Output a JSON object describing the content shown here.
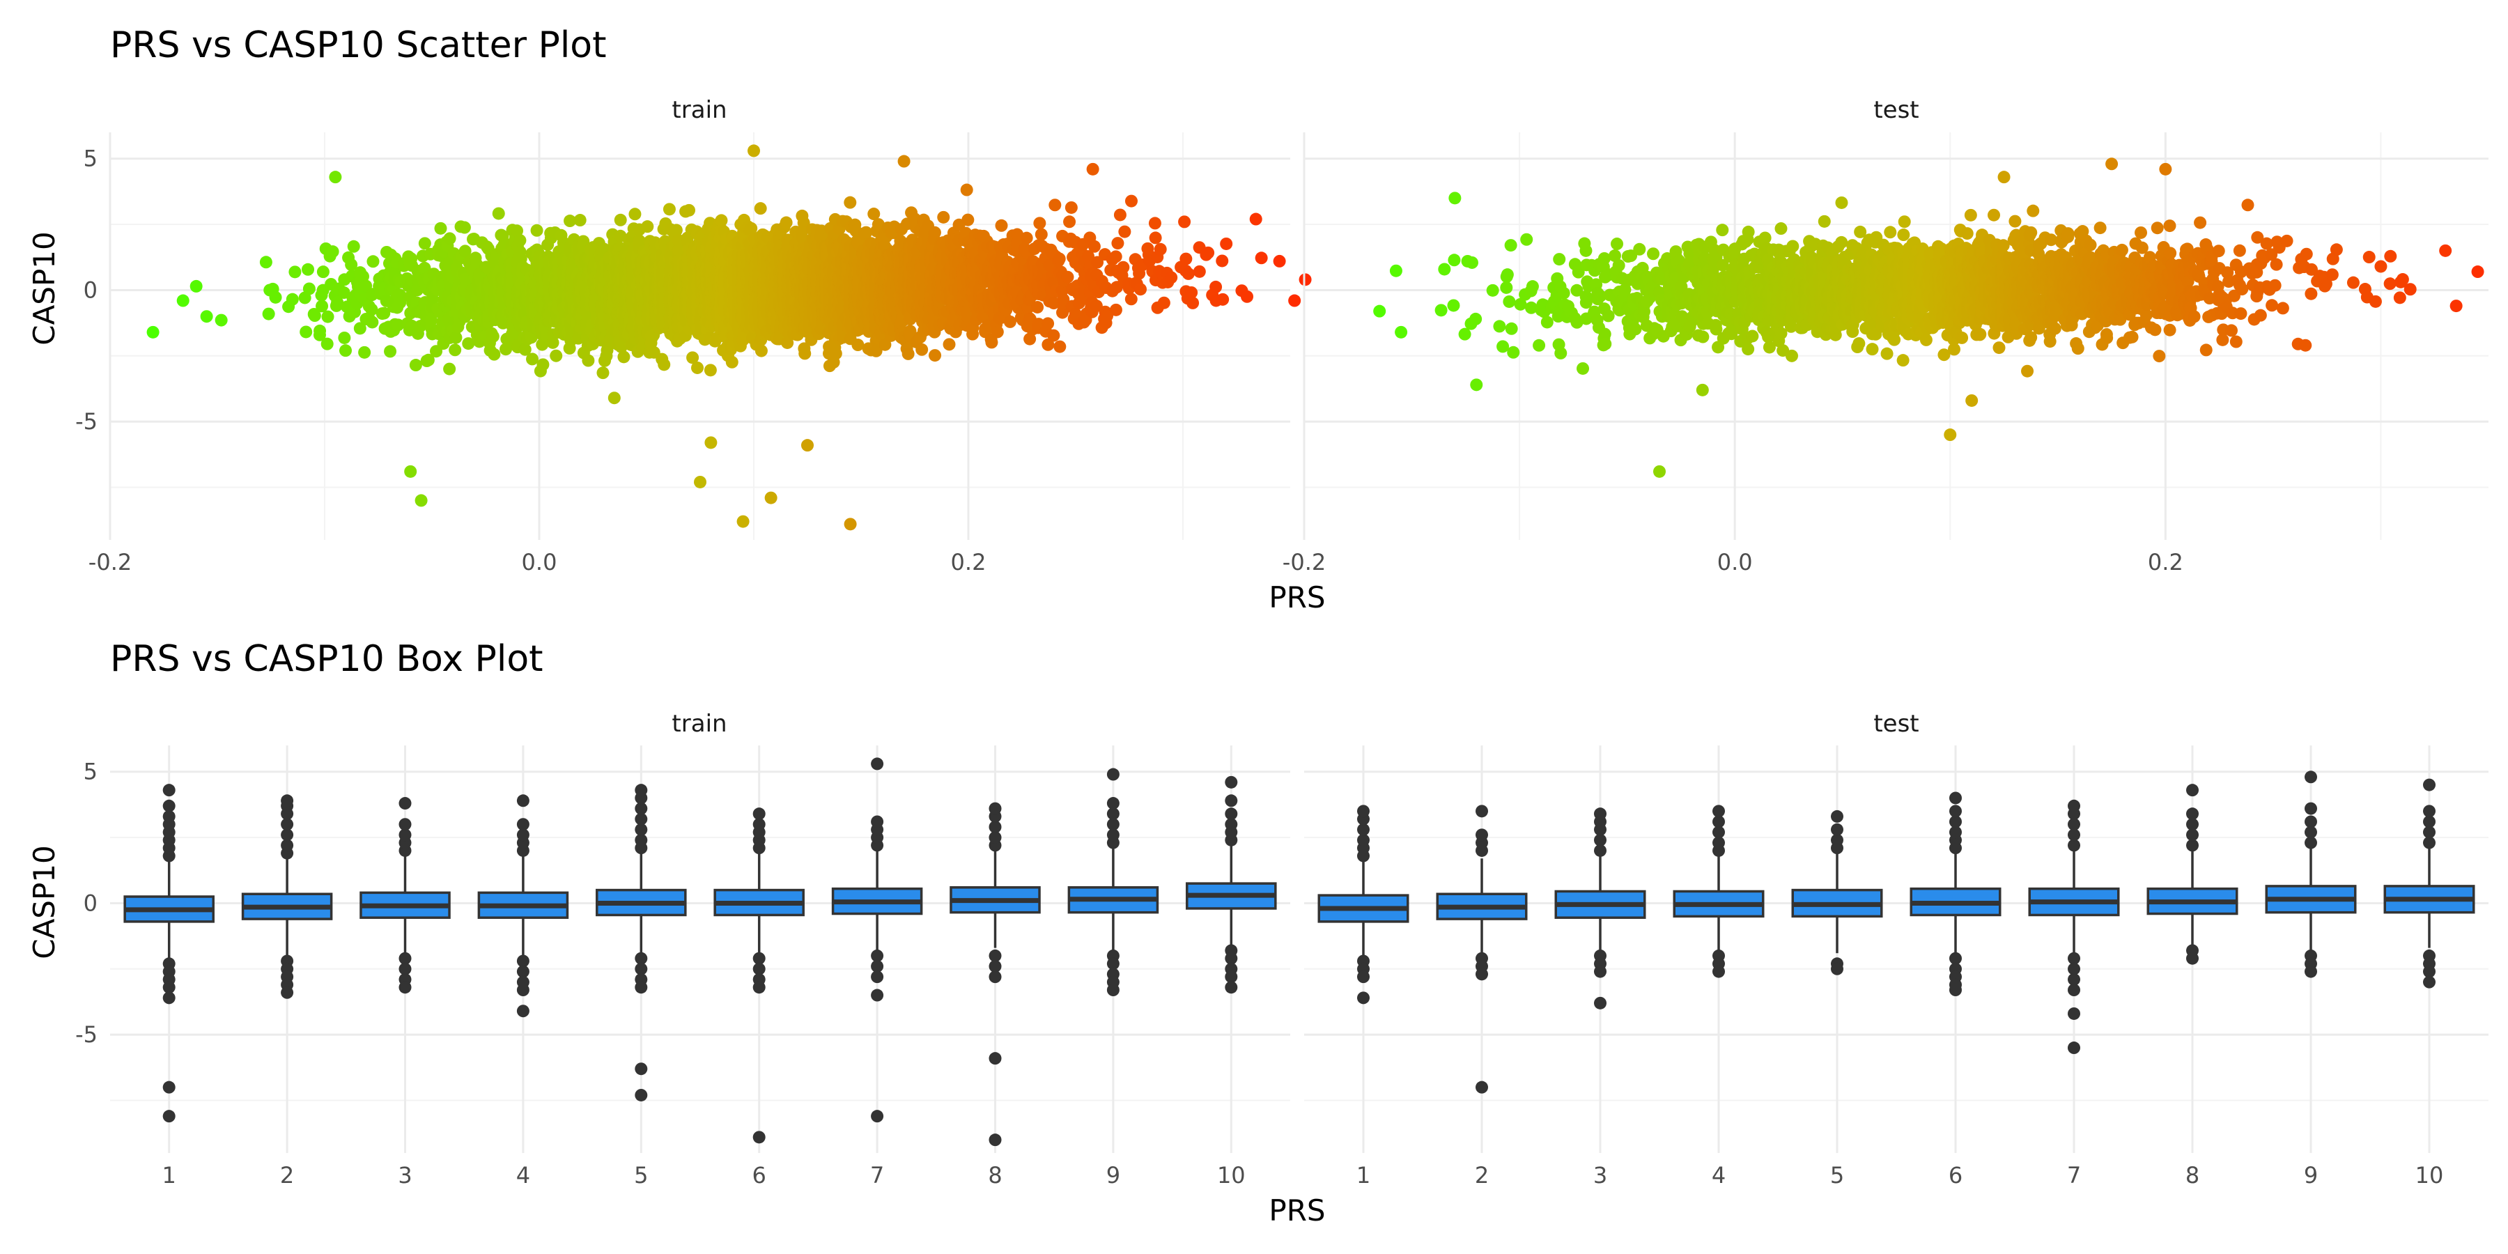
{
  "chart_data": [
    {
      "type": "scatter",
      "title": "PRS vs CASP10 Scatter Plot",
      "xlabel": "PRS",
      "ylabel": "CASP10",
      "facets": [
        "train",
        "test"
      ],
      "xlim": [
        -0.2,
        0.35
      ],
      "ylim": [
        -9.5,
        6
      ],
      "x_ticks": [
        -0.2,
        0.0,
        0.2
      ],
      "x_tick_labels": [
        "-0.2",
        "0.0",
        "0.2"
      ],
      "y_ticks": [
        -5,
        0,
        5
      ],
      "y_tick_labels": [
        "-5",
        "0",
        "5"
      ],
      "grid": true,
      "color_scale": {
        "low": "#4cff00",
        "mid": "#c8b400",
        "high": "#ff2a00",
        "mapped_to": "PRS"
      },
      "point_clouds": [
        {
          "facet": "train",
          "n_points": 6000,
          "x_center": 0.095,
          "x_sd": 0.075,
          "x_range": [
            -0.18,
            0.357
          ],
          "y_center": 0.1,
          "y_sd": 0.95,
          "y_slope": 1.6
        },
        {
          "facet": "test",
          "n_points": 2600,
          "x_center": 0.085,
          "x_sd": 0.075,
          "x_range": [
            -0.16,
            0.345
          ],
          "y_center": 0.0,
          "y_sd": 0.9,
          "y_slope": 1.6
        }
      ],
      "outliers": [
        {
          "facet": "train",
          "points": [
            [
              -0.18,
              -1.6
            ],
            [
              -0.166,
              -0.4
            ],
            [
              -0.155,
              -1.0
            ],
            [
              -0.095,
              4.3
            ],
            [
              -0.06,
              -6.9
            ],
            [
              -0.055,
              -8.0
            ],
            [
              0.035,
              -4.1
            ],
            [
              0.08,
              -5.8
            ],
            [
              0.075,
              -7.3
            ],
            [
              0.1,
              5.3
            ],
            [
              0.095,
              -8.8
            ],
            [
              0.108,
              -7.9
            ],
            [
              0.125,
              -5.9
            ],
            [
              0.145,
              -8.9
            ],
            [
              0.17,
              4.9
            ],
            [
              0.258,
              4.6
            ],
            [
              0.334,
              2.7
            ],
            [
              0.352,
              -0.4
            ],
            [
              0.357,
              0.4
            ],
            [
              0.345,
              1.1
            ]
          ]
        },
        {
          "facet": "test",
          "points": [
            [
              -0.155,
              -1.6
            ],
            [
              -0.165,
              -0.8
            ],
            [
              -0.13,
              3.5
            ],
            [
              -0.12,
              -3.6
            ],
            [
              -0.035,
              -6.9
            ],
            [
              -0.015,
              -3.8
            ],
            [
              0.1,
              -5.5
            ],
            [
              0.11,
              -4.2
            ],
            [
              0.125,
              4.3
            ],
            [
              0.175,
              4.8
            ],
            [
              0.2,
              4.6
            ],
            [
              0.265,
              -2.1
            ],
            [
              0.3,
              0.9
            ],
            [
              0.33,
              1.5
            ],
            [
              0.335,
              -0.6
            ],
            [
              0.345,
              0.7
            ]
          ]
        }
      ]
    },
    {
      "type": "box",
      "title": "PRS vs CASP10 Box Plot",
      "xlabel": "PRS",
      "ylabel": "CASP10",
      "facets": [
        "train",
        "test"
      ],
      "categories": [
        "1",
        "2",
        "3",
        "4",
        "5",
        "6",
        "7",
        "8",
        "9",
        "10"
      ],
      "ylim": [
        -9.5,
        6
      ],
      "y_ticks": [
        -5,
        0,
        5
      ],
      "y_tick_labels": [
        "-5",
        "0",
        "5"
      ],
      "grid": true,
      "fill_color": "#2a8ceb",
      "series": [
        {
          "name": "train",
          "boxes": [
            {
              "q1": -0.7,
              "median": -0.25,
              "q3": 0.25,
              "whisker_low": -2.1,
              "whisker_high": 1.6,
              "outliers": [
                1.8,
                2.1,
                2.4,
                2.7,
                3.0,
                3.3,
                3.7,
                4.3,
                -2.3,
                -2.6,
                -2.9,
                -3.2,
                -3.6,
                -7.0,
                -8.1
              ]
            },
            {
              "q1": -0.6,
              "median": -0.15,
              "q3": 0.35,
              "whisker_low": -2.0,
              "whisker_high": 1.7,
              "outliers": [
                1.9,
                2.2,
                2.6,
                3.0,
                3.4,
                3.7,
                3.9,
                -2.2,
                -2.5,
                -2.8,
                -3.1,
                -3.4
              ]
            },
            {
              "q1": -0.55,
              "median": -0.1,
              "q3": 0.4,
              "whisker_low": -1.9,
              "whisker_high": 1.8,
              "outliers": [
                2.0,
                2.3,
                2.6,
                3.0,
                3.8,
                -2.1,
                -2.5,
                -2.9,
                -3.2
              ]
            },
            {
              "q1": -0.55,
              "median": -0.1,
              "q3": 0.4,
              "whisker_low": -2.0,
              "whisker_high": 1.8,
              "outliers": [
                2.0,
                2.3,
                2.6,
                3.0,
                3.9,
                -2.2,
                -2.6,
                -3.0,
                -3.3,
                -4.1
              ]
            },
            {
              "q1": -0.45,
              "median": 0.0,
              "q3": 0.5,
              "whisker_low": -1.9,
              "whisker_high": 1.9,
              "outliers": [
                2.1,
                2.4,
                2.8,
                3.2,
                3.6,
                4.0,
                4.3,
                -2.1,
                -2.5,
                -2.9,
                -3.2,
                -6.3,
                -7.3
              ]
            },
            {
              "q1": -0.45,
              "median": 0.0,
              "q3": 0.5,
              "whisker_low": -1.9,
              "whisker_high": 1.9,
              "outliers": [
                2.1,
                2.4,
                2.7,
                3.0,
                3.4,
                -2.1,
                -2.5,
                -2.9,
                -3.2,
                -8.9
              ]
            },
            {
              "q1": -0.4,
              "median": 0.05,
              "q3": 0.55,
              "whisker_low": -1.8,
              "whisker_high": 2.0,
              "outliers": [
                2.2,
                2.5,
                2.8,
                3.1,
                5.3,
                -2.0,
                -2.4,
                -2.8,
                -3.5,
                -8.1
              ]
            },
            {
              "q1": -0.35,
              "median": 0.1,
              "q3": 0.6,
              "whisker_low": -1.7,
              "whisker_high": 2.0,
              "outliers": [
                2.2,
                2.5,
                2.9,
                3.3,
                3.6,
                -2.0,
                -2.4,
                -2.8,
                -5.9,
                -9.0
              ]
            },
            {
              "q1": -0.35,
              "median": 0.15,
              "q3": 0.6,
              "whisker_low": -1.8,
              "whisker_high": 2.1,
              "outliers": [
                2.3,
                2.6,
                3.0,
                3.4,
                3.8,
                4.9,
                -2.0,
                -2.3,
                -2.7,
                -3.0,
                -3.3
              ]
            },
            {
              "q1": -0.2,
              "median": 0.3,
              "q3": 0.75,
              "whisker_low": -1.6,
              "whisker_high": 2.2,
              "outliers": [
                2.4,
                2.7,
                3.0,
                3.4,
                3.9,
                4.6,
                -1.8,
                -2.1,
                -2.5,
                -2.8,
                -3.2
              ]
            }
          ]
        },
        {
          "name": "test",
          "boxes": [
            {
              "q1": -0.7,
              "median": -0.2,
              "q3": 0.3,
              "whisker_low": -2.0,
              "whisker_high": 1.6,
              "outliers": [
                1.8,
                2.1,
                2.4,
                2.8,
                3.2,
                3.5,
                -2.2,
                -2.5,
                -2.8,
                -3.6
              ]
            },
            {
              "q1": -0.6,
              "median": -0.15,
              "q3": 0.35,
              "whisker_low": -1.9,
              "whisker_high": 1.7,
              "outliers": [
                2.0,
                2.3,
                2.6,
                3.5,
                -2.1,
                -2.4,
                -2.7,
                -7.0
              ]
            },
            {
              "q1": -0.55,
              "median": -0.05,
              "q3": 0.45,
              "whisker_low": -1.8,
              "whisker_high": 1.8,
              "outliers": [
                2.0,
                2.4,
                2.8,
                3.1,
                3.4,
                -2.0,
                -2.3,
                -2.6,
                -3.8
              ]
            },
            {
              "q1": -0.5,
              "median": -0.05,
              "q3": 0.45,
              "whisker_low": -1.8,
              "whisker_high": 1.8,
              "outliers": [
                2.0,
                2.3,
                2.7,
                3.1,
                3.5,
                -2.0,
                -2.3,
                -2.6
              ]
            },
            {
              "q1": -0.5,
              "median": -0.05,
              "q3": 0.5,
              "whisker_low": -1.9,
              "whisker_high": 1.9,
              "outliers": [
                2.1,
                2.4,
                2.8,
                3.3,
                -2.3,
                -2.5
              ]
            },
            {
              "q1": -0.45,
              "median": 0.0,
              "q3": 0.55,
              "whisker_low": -1.9,
              "whisker_high": 1.9,
              "outliers": [
                2.1,
                2.4,
                2.7,
                3.1,
                3.5,
                4.0,
                -2.1,
                -2.5,
                -2.8,
                -3.1,
                -3.3
              ]
            },
            {
              "q1": -0.45,
              "median": 0.05,
              "q3": 0.55,
              "whisker_low": -1.9,
              "whisker_high": 2.0,
              "outliers": [
                2.2,
                2.6,
                3.0,
                3.4,
                3.7,
                -2.1,
                -2.5,
                -2.9,
                -3.3,
                -4.2,
                -5.5
              ]
            },
            {
              "q1": -0.4,
              "median": 0.05,
              "q3": 0.55,
              "whisker_low": -1.7,
              "whisker_high": 2.0,
              "outliers": [
                2.2,
                2.6,
                3.0,
                3.4,
                4.3,
                -1.8,
                -2.1
              ]
            },
            {
              "q1": -0.35,
              "median": 0.15,
              "q3": 0.65,
              "whisker_low": -1.8,
              "whisker_high": 2.1,
              "outliers": [
                2.3,
                2.7,
                3.1,
                3.6,
                4.8,
                -2.0,
                -2.3,
                -2.6
              ]
            },
            {
              "q1": -0.35,
              "median": 0.15,
              "q3": 0.65,
              "whisker_low": -1.7,
              "whisker_high": 2.1,
              "outliers": [
                2.3,
                2.7,
                3.1,
                3.5,
                4.5,
                -2.0,
                -2.3,
                -2.6,
                -3.0
              ]
            }
          ]
        }
      ]
    }
  ]
}
